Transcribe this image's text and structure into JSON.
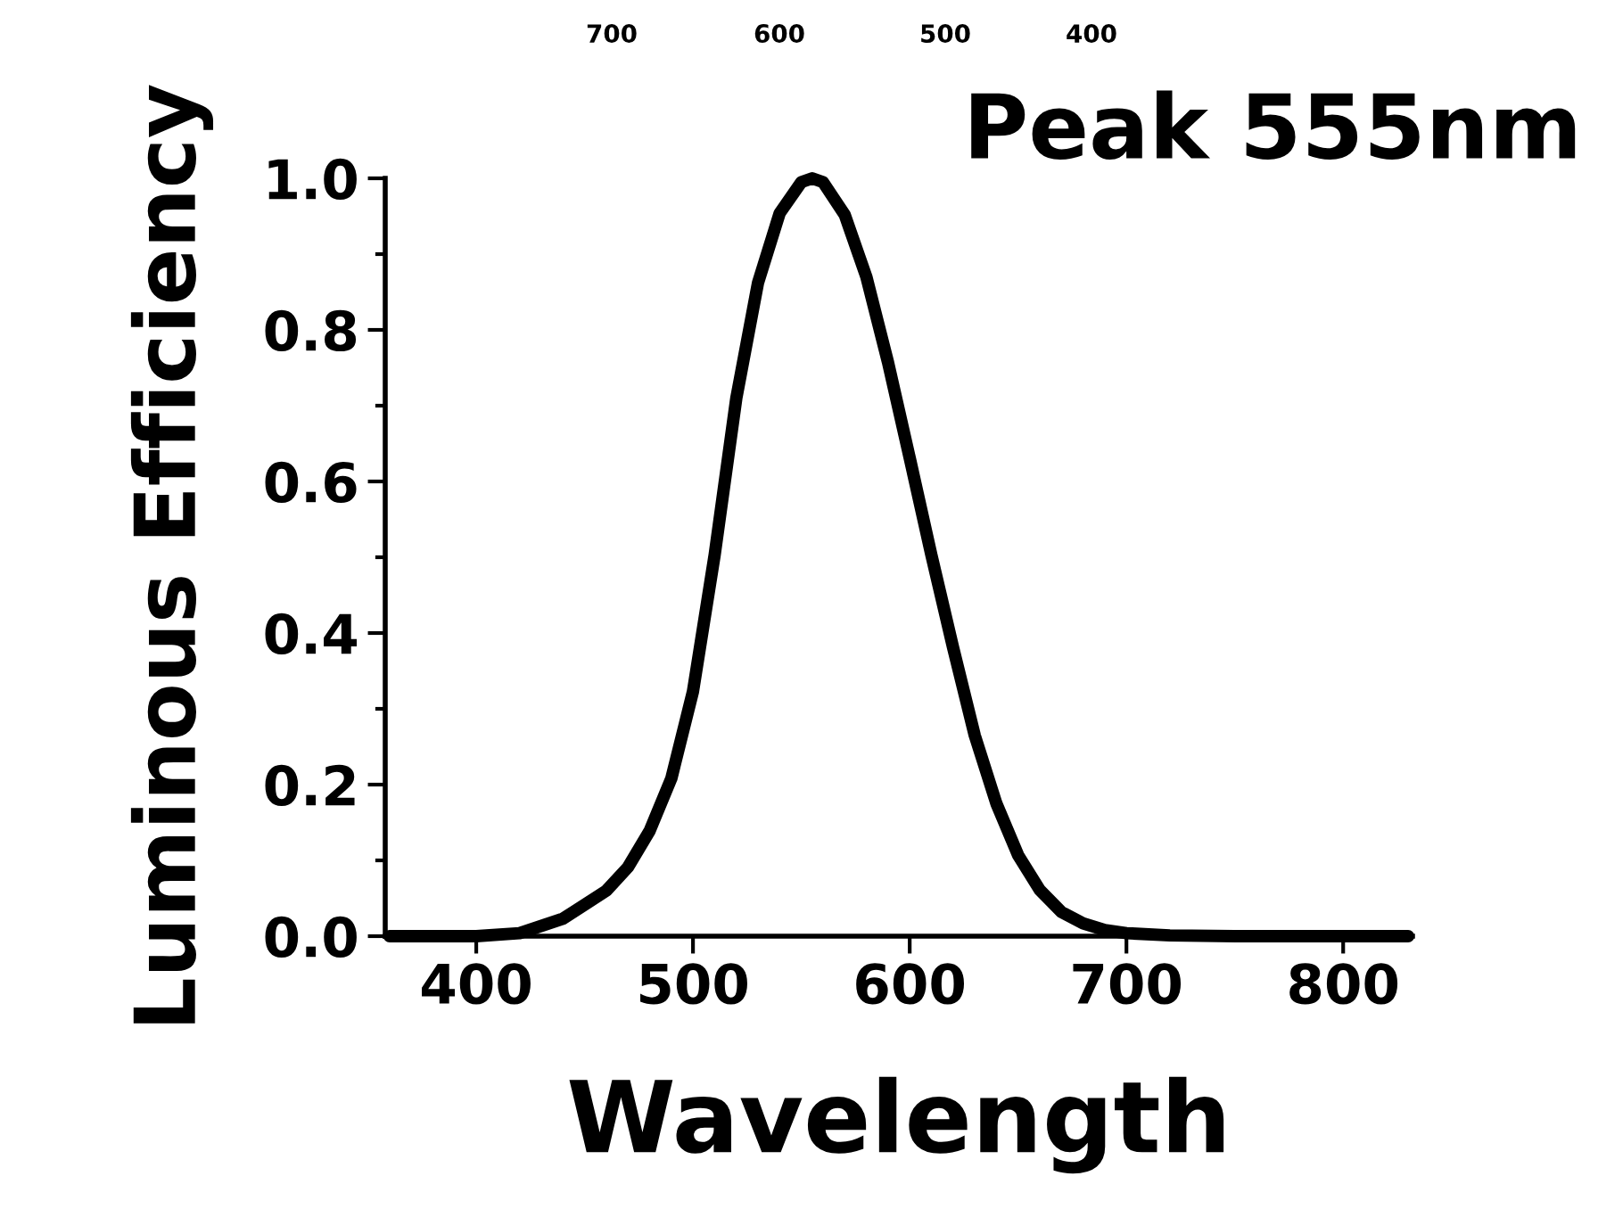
{
  "chart_data": {
    "type": "line",
    "xlabel": "Wavelength",
    "ylabel": "Luminous Efficiency",
    "annotations": [
      "Peak 555nm",
      "700",
      "600",
      "500",
      "400"
    ],
    "series": [
      {
        "color": "#000000",
        "x": [
          360,
          380,
          400,
          420,
          440,
          460,
          470,
          480,
          490,
          500,
          510,
          520,
          530,
          540,
          550,
          555,
          560,
          570,
          580,
          590,
          600,
          610,
          620,
          630,
          640,
          650,
          660,
          670,
          680,
          690,
          700,
          720,
          750,
          800,
          830
        ],
        "values": [
          0,
          0,
          0,
          0.004,
          0.023,
          0.06,
          0.091,
          0.139,
          0.208,
          0.323,
          0.503,
          0.71,
          0.862,
          0.954,
          0.995,
          1.0,
          0.995,
          0.952,
          0.87,
          0.757,
          0.631,
          0.503,
          0.381,
          0.265,
          0.175,
          0.107,
          0.061,
          0.032,
          0.017,
          0.008,
          0.004,
          0.001,
          0,
          0,
          0
        ]
      }
    ],
    "xlim": [
      358,
      832
    ],
    "ylim": [
      0,
      1.0
    ],
    "xticks": [
      400,
      500,
      600,
      700,
      800
    ],
    "yticks": [
      {
        "value": 0,
        "label": "0.0"
      },
      {
        "value": 0.2,
        "label": "0.2"
      },
      {
        "value": 0.4,
        "label": "0.4"
      },
      {
        "value": 0.6,
        "label": "0.6"
      },
      {
        "value": 0.8,
        "label": "0.8"
      },
      {
        "value": 1,
        "label": "1.0"
      }
    ],
    "grid": false,
    "legend": false,
    "marker": "none",
    "line_style": "solid"
  }
}
